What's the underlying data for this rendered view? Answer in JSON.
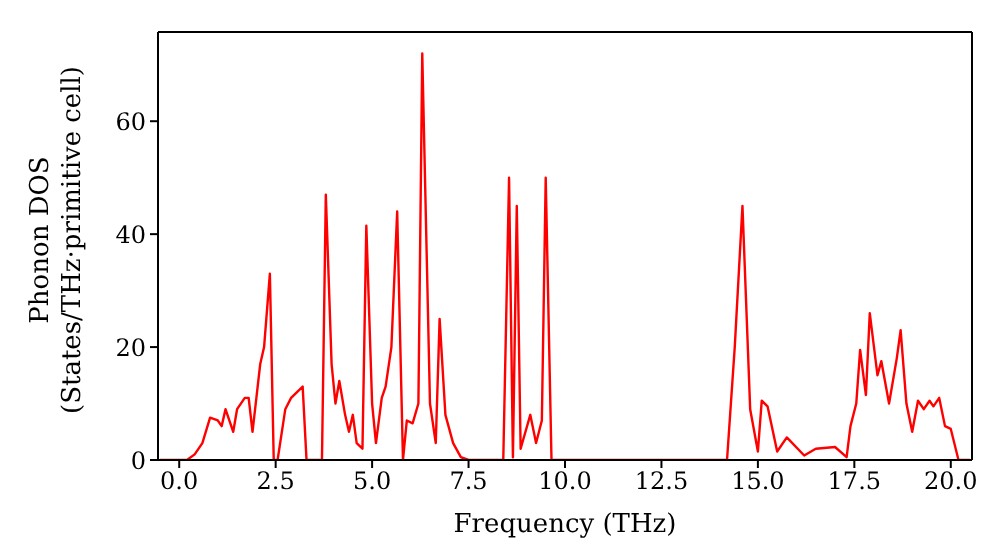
{
  "chart_data": {
    "type": "line",
    "xlabel": "Frequency (THz)",
    "ylabel": "Phonon DOS\n(States/THz·primitive cell)",
    "xlim": [
      -0.55,
      20.55
    ],
    "ylim": [
      0,
      75.8
    ],
    "xticks": [
      {
        "value": 0,
        "label": "0.0"
      },
      {
        "value": 2.5,
        "label": "2.5"
      },
      {
        "value": 5,
        "label": "5.0"
      },
      {
        "value": 7.5,
        "label": "7.5"
      },
      {
        "value": 10,
        "label": "10.0"
      },
      {
        "value": 12.5,
        "label": "12.5"
      },
      {
        "value": 15,
        "label": "15.0"
      },
      {
        "value": 17.5,
        "label": "17.5"
      },
      {
        "value": 20,
        "label": "20.0"
      }
    ],
    "yticks": [
      0,
      20,
      40,
      60
    ],
    "grid": false,
    "marker": "none",
    "line_style": "solid",
    "series": [
      {
        "color": "#ff0000",
        "x": [
          -0.5,
          0.2,
          0.4,
          0.6,
          0.8,
          1.0,
          1.1,
          1.2,
          1.4,
          1.5,
          1.7,
          1.8,
          1.9,
          2.1,
          2.2,
          2.35,
          2.45,
          2.55,
          2.75,
          2.9,
          3.2,
          3.3,
          3.7,
          3.8,
          3.95,
          4.05,
          4.15,
          4.3,
          4.4,
          4.5,
          4.6,
          4.75,
          4.85,
          5.0,
          5.1,
          5.25,
          5.35,
          5.5,
          5.65,
          5.8,
          5.9,
          6.05,
          6.2,
          6.3,
          6.5,
          6.65,
          6.75,
          6.9,
          7.1,
          7.3,
          7.5,
          8.4,
          8.55,
          8.65,
          8.75,
          8.85,
          9.1,
          9.25,
          9.4,
          9.5,
          9.65,
          14.2,
          14.4,
          14.6,
          14.8,
          15.0,
          15.1,
          15.25,
          15.5,
          15.75,
          16.2,
          16.5,
          17.0,
          17.3,
          17.4,
          17.55,
          17.65,
          17.8,
          17.9,
          18.1,
          18.2,
          18.4,
          18.6,
          18.7,
          18.85,
          19.0,
          19.15,
          19.3,
          19.45,
          19.55,
          19.7,
          19.85,
          20.0,
          20.2,
          20.5
        ],
        "values": [
          0,
          0,
          1,
          3,
          7.5,
          7,
          6,
          9,
          5,
          9,
          11,
          11,
          5,
          17,
          20,
          33,
          0,
          0,
          9,
          11,
          13,
          0,
          0,
          47,
          17,
          10,
          14,
          8,
          5,
          8,
          3,
          2,
          41.5,
          10,
          3,
          11,
          13,
          20,
          44,
          0,
          7,
          6.5,
          10,
          72,
          10,
          3,
          25,
          8,
          3,
          0.5,
          0,
          0,
          50,
          0.5,
          45,
          2,
          8,
          3,
          7,
          50,
          0,
          0,
          20,
          45,
          9,
          1.5,
          10.5,
          9.5,
          1.5,
          4,
          0.8,
          2,
          2.3,
          0.5,
          6,
          10,
          19.5,
          11.5,
          26,
          15,
          17.5,
          10,
          18,
          23,
          10,
          5,
          10.5,
          9,
          10.5,
          9.5,
          11,
          6,
          5.5,
          0,
          0
        ]
      }
    ]
  }
}
